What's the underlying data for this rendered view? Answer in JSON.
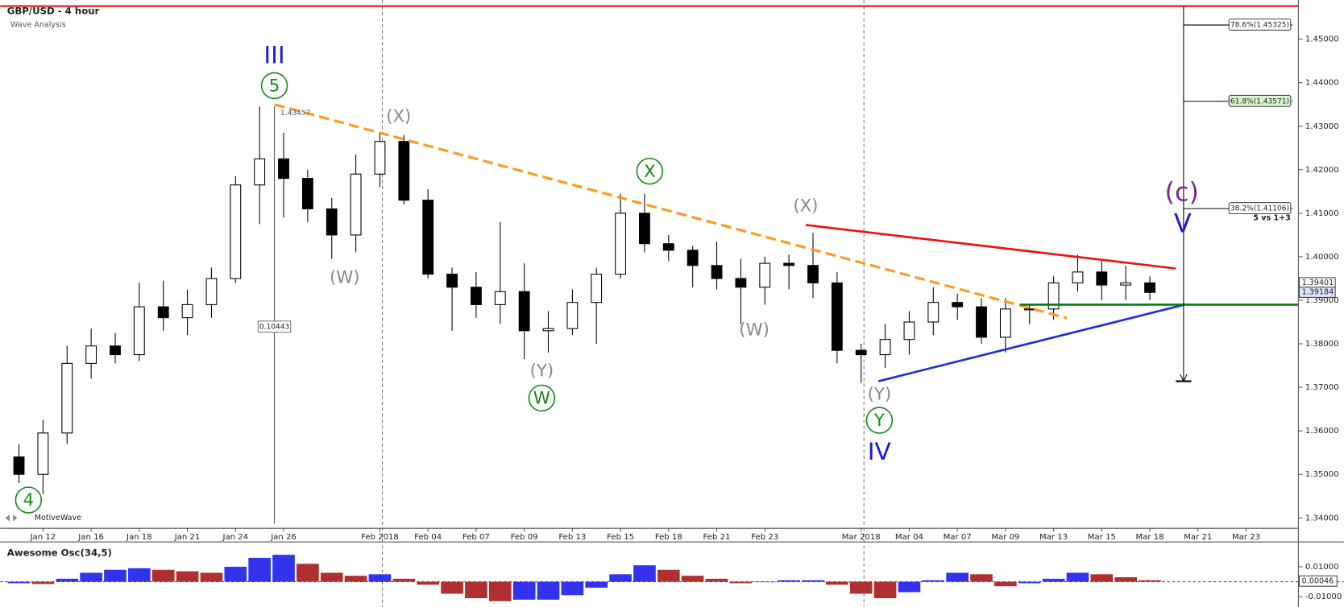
{
  "chart_data": [
    {
      "type": "candlestick",
      "title": "GBP/USD - 4 hour",
      "subtitle": "Wave Analysis",
      "watermark": "MotiveWave",
      "categories": [
        null,
        "Jan 12",
        null,
        "Jan 16",
        null,
        "Jan 18",
        null,
        "Jan 21",
        null,
        "Jan 24",
        null,
        "Jan 26",
        null,
        null,
        null,
        "Feb 2018",
        null,
        "Feb 04",
        null,
        "Feb 07",
        null,
        "Feb 09",
        null,
        "Feb 13",
        null,
        "Feb 15",
        null,
        "Feb 18",
        null,
        "Feb 21",
        null,
        "Feb 23",
        null,
        null,
        null,
        "Mar 2018",
        null,
        "Mar 04",
        null,
        "Mar 07",
        null,
        "Mar 09",
        null,
        "Mar 13",
        null,
        "Mar 15",
        null,
        "Mar 18",
        null,
        "Mar 21",
        null,
        "Mar 23"
      ],
      "open": [
        1.354,
        1.35,
        1.3595,
        1.3755,
        1.3795,
        1.3775,
        1.3885,
        1.386,
        1.389,
        1.395,
        1.4165,
        1.4225,
        1.418,
        1.411,
        1.405,
        1.419,
        1.4265,
        1.413,
        1.396,
        1.393,
        1.389,
        1.392,
        1.383,
        1.3835,
        1.3895,
        1.396,
        1.41,
        1.403,
        1.4015,
        1.398,
        1.395,
        1.393,
        1.3985,
        1.398,
        1.394,
        1.3785,
        1.3775,
        1.381,
        1.385,
        1.3895,
        1.3885,
        1.3815,
        1.388,
        1.388,
        1.394,
        1.3965,
        1.3935,
        1.394,
        null,
        null,
        null,
        null
      ],
      "high": [
        1.357,
        1.3625,
        1.3795,
        1.3835,
        1.3825,
        1.394,
        1.3945,
        1.3925,
        1.3975,
        1.4185,
        1.4345,
        1.4285,
        1.42,
        1.4135,
        1.4235,
        1.4285,
        1.428,
        1.4155,
        1.3975,
        1.3965,
        1.408,
        1.3985,
        1.3875,
        1.3925,
        1.3975,
        1.4145,
        1.4145,
        1.405,
        1.4025,
        1.4035,
        1.3995,
        1.4,
        1.4005,
        1.4055,
        1.3965,
        1.38,
        1.3845,
        1.3875,
        1.393,
        1.3915,
        1.3905,
        1.3905,
        1.389,
        1.3955,
        1.4005,
        1.399,
        1.398,
        1.3955,
        null,
        null,
        null,
        null
      ],
      "low": [
        1.348,
        1.3455,
        1.357,
        1.372,
        1.3755,
        1.376,
        1.383,
        1.382,
        1.386,
        1.394,
        1.4075,
        1.409,
        1.408,
        1.3995,
        1.401,
        1.416,
        1.412,
        1.395,
        1.383,
        1.386,
        1.3845,
        1.3765,
        1.378,
        1.382,
        1.38,
        1.395,
        1.401,
        1.399,
        1.393,
        1.3925,
        1.3845,
        1.389,
        1.3925,
        1.3905,
        1.3755,
        1.371,
        1.3745,
        1.3775,
        1.382,
        1.3855,
        1.38,
        1.378,
        1.3845,
        1.3855,
        1.392,
        1.39,
        1.39,
        1.39,
        null,
        null,
        null,
        null
      ],
      "close": [
        1.35,
        1.3595,
        1.3755,
        1.3795,
        1.3775,
        1.3885,
        1.386,
        1.389,
        1.395,
        1.4165,
        1.4225,
        1.418,
        1.411,
        1.405,
        1.419,
        1.4265,
        1.413,
        1.396,
        1.393,
        1.389,
        1.392,
        1.383,
        1.3835,
        1.3895,
        1.396,
        1.41,
        1.403,
        1.4015,
        1.398,
        1.395,
        1.393,
        1.3985,
        1.398,
        1.394,
        1.3785,
        1.3775,
        1.381,
        1.385,
        1.3895,
        1.3885,
        1.3815,
        1.388,
        1.388,
        1.394,
        1.3965,
        1.3935,
        1.394,
        1.3918,
        null,
        null,
        null,
        null
      ],
      "up_color": "#ffffff",
      "down_color": "#000000",
      "ylim": [
        1.3386,
        1.459
      ],
      "yticks": [
        {
          "value": 1.34,
          "label": "1.34000"
        },
        {
          "value": 1.35,
          "label": "1.35000"
        },
        {
          "value": 1.36,
          "label": "1.36000"
        },
        {
          "value": 1.37,
          "label": "1.37000"
        },
        {
          "value": 1.38,
          "label": "1.38000"
        },
        {
          "value": 1.39,
          "label": "1.39000"
        },
        {
          "value": 1.4,
          "label": "1.40000"
        },
        {
          "value": 1.41,
          "label": "1.41000"
        },
        {
          "value": 1.42,
          "label": "1.42000"
        },
        {
          "value": 1.43,
          "label": "1.43000"
        },
        {
          "value": 1.44,
          "label": "1.44000"
        },
        {
          "value": 1.45,
          "label": "1.45000"
        }
      ],
      "hlines": [
        {
          "value": 1.4576,
          "color": "#e01010"
        }
      ],
      "trendlines": [
        {
          "x": [
            10.62,
            43.56
          ],
          "y": [
            1.435,
            1.3859
          ],
          "color": "#ff9922",
          "dashed": true
        },
        {
          "x": [
            32.7,
            48.08
          ],
          "y": [
            1.4073,
            1.3973
          ],
          "color": "#ee1111",
          "dashed": false
        },
        {
          "x": [
            35.72,
            48.37
          ],
          "y": [
            1.3714,
            1.3889
          ],
          "color": "#1a2ee0",
          "dashed": false
        },
        {
          "x": [
            41.6,
            53.17
          ],
          "y": [
            1.389,
            1.389
          ],
          "color": "#0a7a0a",
          "dashed": false
        }
      ],
      "fib": {
        "start": 1.4576,
        "end": 1.3714,
        "note": "5 vs 1+3",
        "levels": [
          {
            "value": 1.45325,
            "label": "78.6%(1.45325)"
          },
          {
            "value": 1.43571,
            "label": "61.8%(1.43571)"
          },
          {
            "value": 1.41106,
            "label": "38.2%(1.41106)"
          }
        ]
      },
      "measure": {
        "top": 1.43457,
        "value": 0.10443
      },
      "last_prices": [
        1.39401,
        1.39184
      ],
      "wave_labels": [
        {
          "text": "III",
          "color": "#1a1adc",
          "circled": false
        },
        {
          "text": "5",
          "color": "#148a14",
          "circled": true
        },
        {
          "text": "4",
          "color": "#148a14",
          "circled": true
        },
        {
          "text": "(X)",
          "color": "#888888",
          "circled": false
        },
        {
          "text": "(W)",
          "color": "#888888",
          "circled": false
        },
        {
          "text": "(Y)",
          "color": "#888888",
          "circled": false
        },
        {
          "text": "W",
          "color": "#148a14",
          "circled": true
        },
        {
          "text": "X",
          "color": "#148a14",
          "circled": true
        },
        {
          "text": "(X)",
          "color": "#888888",
          "circled": false
        },
        {
          "text": "(W)",
          "color": "#888888",
          "circled": false
        },
        {
          "text": "(Y)",
          "color": "#888888",
          "circled": false
        },
        {
          "text": "Y",
          "color": "#148a14",
          "circled": true
        },
        {
          "text": "IV",
          "color": "#1a1adc",
          "circled": false
        },
        {
          "text": "(c)",
          "color": "#7a2a8a",
          "circled": false
        },
        {
          "text": "V",
          "color": "#1a1adc",
          "circled": false
        }
      ]
    },
    {
      "type": "bar",
      "title": "Awesome Osc(34,5)",
      "values": [
        -0.001,
        -0.0015,
        0.002,
        0.006,
        0.008,
        0.009,
        0.008,
        0.007,
        0.006,
        0.01,
        0.016,
        0.018,
        0.012,
        0.006,
        0.004,
        0.005,
        0.002,
        -0.002,
        -0.008,
        -0.011,
        -0.013,
        -0.012,
        -0.012,
        -0.009,
        -0.004,
        0.005,
        0.011,
        0.008,
        0.004,
        0.002,
        -0.001,
        0,
        0.001,
        0.001,
        -0.002,
        -0.008,
        -0.011,
        -0.007,
        0.001,
        0.006,
        0.005,
        -0.003,
        -0.001,
        0.002,
        0.006,
        0.005,
        0.003,
        0.001
      ],
      "up_color": "#3333ee",
      "down_color": "#b03030",
      "ylim": [
        -0.0169,
        0.0249
      ],
      "yticks": [
        {
          "value": 0.01,
          "label": "0.01000"
        },
        {
          "value": -0.01,
          "label": "-0.01000"
        }
      ],
      "last_value": 0.00046
    }
  ]
}
